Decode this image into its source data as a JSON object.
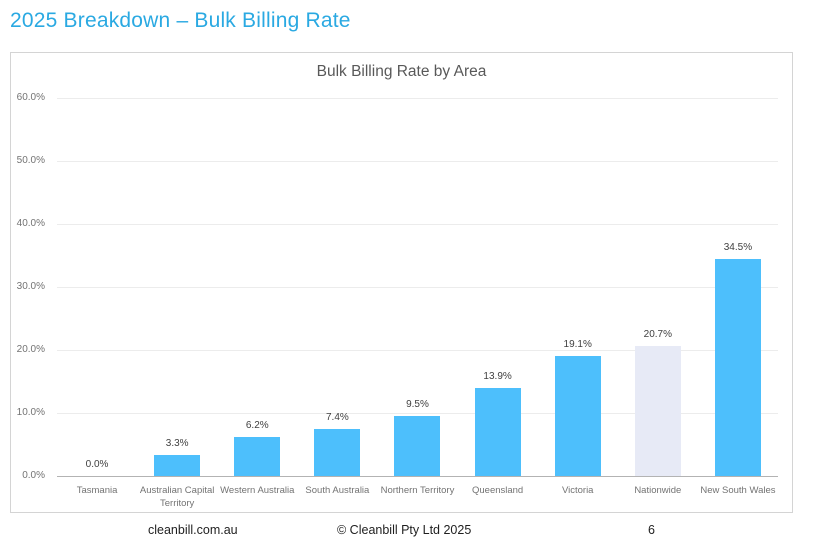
{
  "page": {
    "title": "2025 Breakdown – Bulk Billing Rate"
  },
  "chart_data": {
    "type": "bar",
    "title": "Bulk Billing Rate by Area",
    "categories": [
      "Tasmania",
      "Australian Capital Territory",
      "Western Australia",
      "South Australia",
      "Northern Territory",
      "Queensland",
      "Victoria",
      "Nationwide",
      "New South Wales"
    ],
    "values": [
      0.0,
      3.3,
      6.2,
      7.4,
      9.5,
      13.9,
      19.1,
      20.7,
      34.5
    ],
    "value_labels": [
      "0.0%",
      "3.3%",
      "6.2%",
      "7.4%",
      "9.5%",
      "13.9%",
      "19.1%",
      "20.7%",
      "34.5%"
    ],
    "xlabel": "",
    "ylabel": "",
    "ylim": [
      0,
      60
    ],
    "y_ticks": [
      0,
      10,
      20,
      30,
      40,
      50,
      60
    ],
    "y_tick_labels": [
      "0.0%",
      "10.0%",
      "20.0%",
      "30.0%",
      "40.0%",
      "50.0%",
      "60.0%"
    ],
    "grid": true,
    "legend": false,
    "bar_color": "#4dbffc",
    "highlight_category": "Nationwide",
    "highlight_color": "#e7eaf6"
  },
  "footer": {
    "website": "cleanbill.com.au",
    "copyright": "© Cleanbill Pty Ltd 2025",
    "page_number": "6"
  },
  "colors": {
    "page_title": "#2aa9e2",
    "chart_title": "#595959",
    "axis_text": "#737373",
    "value_label": "#404040",
    "gridline": "#ececec",
    "axis_line": "#b3b3b3",
    "chart_border": "#d4d4d4"
  }
}
